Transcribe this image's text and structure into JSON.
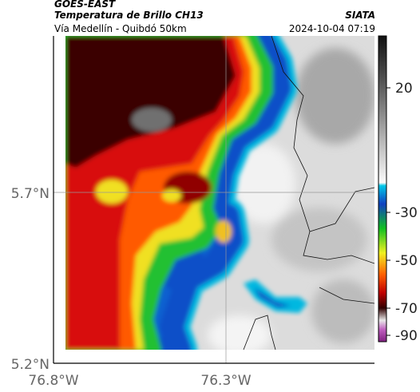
{
  "header": {
    "title": "GOES-EAST",
    "subtitle": "Temperatura de Brillo CH13",
    "region": "Vía Medellín - Quibdó 50km",
    "source": "SIATA",
    "timestamp": "2024-10-04 07:19"
  },
  "axes": {
    "y_labels": [
      "5.7°N",
      "5.2°N"
    ],
    "x_labels": [
      "76.8°W",
      "76.3°W"
    ]
  },
  "colorbar": {
    "ticks": [
      "20",
      "-30",
      "-50",
      "-70",
      "-90"
    ]
  }
}
